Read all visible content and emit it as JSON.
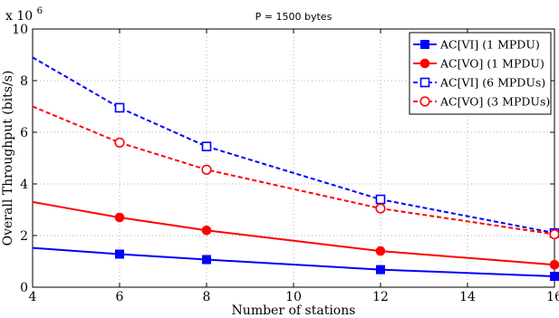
{
  "chart_data": {
    "type": "line",
    "title": "P =  1500 bytes",
    "xlabel": "Number of stations",
    "ylabel": "Overall Throughput (bits/s)",
    "y_multiplier": "x 10",
    "y_multiplier_exponent": "6",
    "xlim": [
      4,
      16
    ],
    "ylim": [
      0,
      10
    ],
    "xticks": [
      4,
      6,
      8,
      10,
      12,
      14,
      16
    ],
    "yticks": [
      0,
      2,
      4,
      6,
      8,
      10
    ],
    "grid": true,
    "legend_position": "top-right",
    "series": [
      {
        "name": "AC[VI] (1 MPDU)",
        "color": "#0000ff",
        "style": "solid",
        "marker": "square-filled",
        "x": [
          4,
          6,
          8,
          12,
          16
        ],
        "y": [
          1.52,
          1.28,
          1.07,
          0.68,
          0.42
        ],
        "marker_x": [
          6,
          8,
          12,
          16
        ]
      },
      {
        "name": "AC[VO] (1 MPDU)",
        "color": "#ff0000",
        "style": "solid",
        "marker": "circle-filled",
        "x": [
          4,
          6,
          8,
          12,
          16
        ],
        "y": [
          3.3,
          2.7,
          2.2,
          1.4,
          0.87
        ],
        "marker_x": [
          6,
          8,
          12,
          16
        ]
      },
      {
        "name": "AC[VI] (6 MPDUs)",
        "color": "#0000ff",
        "style": "dashed",
        "marker": "square-open",
        "x": [
          4,
          6,
          8,
          12,
          16
        ],
        "y": [
          8.9,
          6.95,
          5.45,
          3.4,
          2.1
        ],
        "marker_x": [
          6,
          8,
          12,
          16
        ]
      },
      {
        "name": "AC[VO] (3 MPDUs)",
        "color": "#ff0000",
        "style": "dashed",
        "marker": "circle-open",
        "x": [
          4,
          6,
          8,
          12,
          16
        ],
        "y": [
          7.0,
          5.6,
          4.55,
          3.05,
          2.05
        ],
        "marker_x": [
          6,
          8,
          12,
          16
        ]
      }
    ]
  }
}
